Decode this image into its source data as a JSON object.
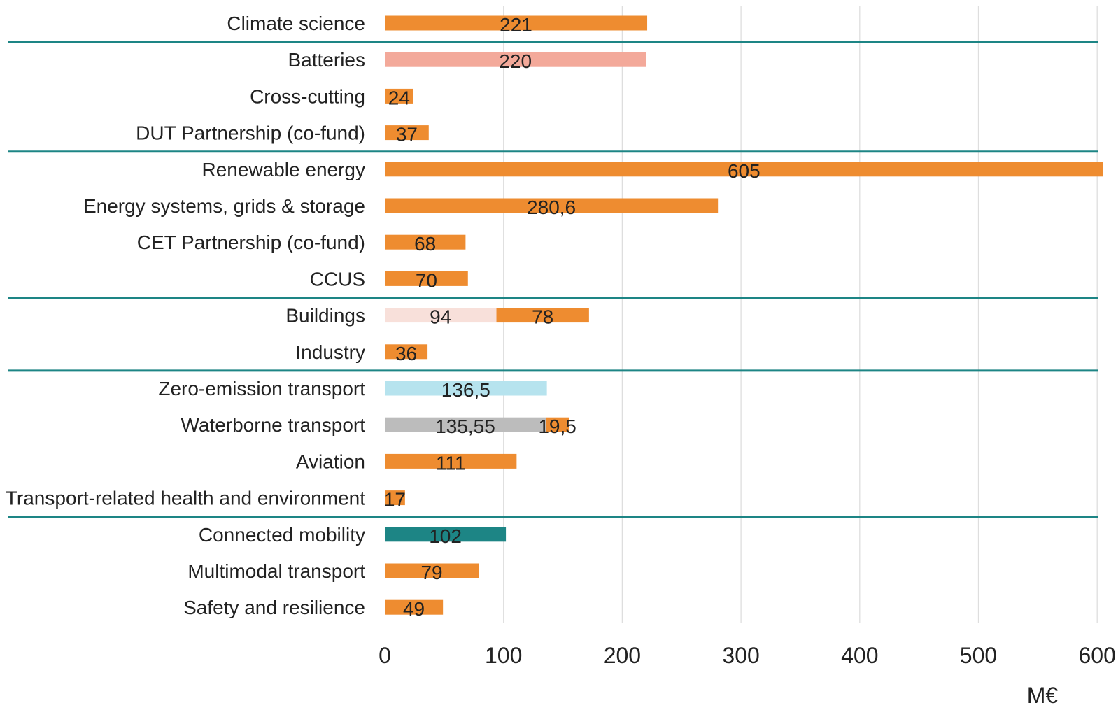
{
  "chart_data": {
    "type": "bar",
    "orientation": "horizontal",
    "stacked": true,
    "title": "",
    "xlabel": "",
    "unit": "M€",
    "xlim": [
      0,
      600
    ],
    "xticks": [
      0,
      100,
      200,
      300,
      400,
      500,
      600
    ],
    "x_tick_labels": [
      "0",
      "100",
      "200",
      "300",
      "400",
      "500",
      "600"
    ],
    "grid": "vertical",
    "categories": [
      "Climate science",
      "Batteries",
      "Cross-cutting",
      "DUT Partnership (co-fund)",
      "Renewable energy",
      "Energy systems, grids & storage",
      "CET Partnership (co-fund)",
      "CCUS",
      "Buildings",
      "Industry",
      "Zero-emission transport",
      "Waterborne transport",
      "Aviation",
      "Transport-related health and environment",
      "Connected mobility",
      "Multimodal transport",
      "Safety and resilience"
    ],
    "bars": [
      {
        "category": "Climate science",
        "segments": [
          {
            "value": 221,
            "label": "221",
            "color": "#ee8c30"
          }
        ]
      },
      {
        "category": "Batteries",
        "segments": [
          {
            "value": 220,
            "label": "220",
            "color": "#f3a99a"
          }
        ]
      },
      {
        "category": "Cross-cutting",
        "segments": [
          {
            "value": 24,
            "label": "24",
            "color": "#ee8c30"
          }
        ]
      },
      {
        "category": "DUT Partnership (co-fund)",
        "segments": [
          {
            "value": 37,
            "label": "37",
            "color": "#ee8c30"
          }
        ]
      },
      {
        "category": "Renewable energy",
        "segments": [
          {
            "value": 605,
            "label": "605",
            "color": "#ee8c30"
          }
        ]
      },
      {
        "category": "Energy systems, grids & storage",
        "segments": [
          {
            "value": 280.6,
            "label": "280,6",
            "color": "#ee8c30"
          }
        ]
      },
      {
        "category": "CET Partnership (co-fund)",
        "segments": [
          {
            "value": 68,
            "label": "68",
            "color": "#ee8c30"
          }
        ]
      },
      {
        "category": "CCUS",
        "segments": [
          {
            "value": 70,
            "label": "70",
            "color": "#ee8c30"
          }
        ]
      },
      {
        "category": "Buildings",
        "segments": [
          {
            "value": 94,
            "label": "94",
            "color": "#f8e0da"
          },
          {
            "value": 78,
            "label": "78",
            "color": "#ee8c30"
          }
        ]
      },
      {
        "category": "Industry",
        "segments": [
          {
            "value": 36,
            "label": "36",
            "color": "#ee8c30"
          }
        ]
      },
      {
        "category": "Zero-emission transport",
        "segments": [
          {
            "value": 136.5,
            "label": "136,5",
            "color": "#b6e3ee"
          }
        ]
      },
      {
        "category": "Waterborne transport",
        "segments": [
          {
            "value": 135.55,
            "label": "135,55",
            "color": "#bcbcbc"
          },
          {
            "value": 19.5,
            "label": "19,5",
            "color": "#ee8c30"
          }
        ]
      },
      {
        "category": "Aviation",
        "segments": [
          {
            "value": 111,
            "label": "111",
            "color": "#ee8c30"
          }
        ]
      },
      {
        "category": "Transport-related health and environment",
        "segments": [
          {
            "value": 17,
            "label": "17",
            "color": "#ee8c30"
          }
        ]
      },
      {
        "category": "Connected mobility",
        "segments": [
          {
            "value": 102,
            "label": "102",
            "color": "#1d8585"
          }
        ]
      },
      {
        "category": "Multimodal transport",
        "segments": [
          {
            "value": 79,
            "label": "79",
            "color": "#ee8c30"
          }
        ]
      },
      {
        "category": "Safety and resilience",
        "segments": [
          {
            "value": 49,
            "label": "49",
            "color": "#ee8c30"
          }
        ]
      }
    ],
    "group_separators_after": [
      "Climate science",
      "DUT Partnership (co-fund)",
      "CCUS",
      "Industry",
      "Transport-related health and environment"
    ],
    "colors": {
      "separator": "#1d8585",
      "grid": "#dedede",
      "text": "#222222"
    }
  }
}
